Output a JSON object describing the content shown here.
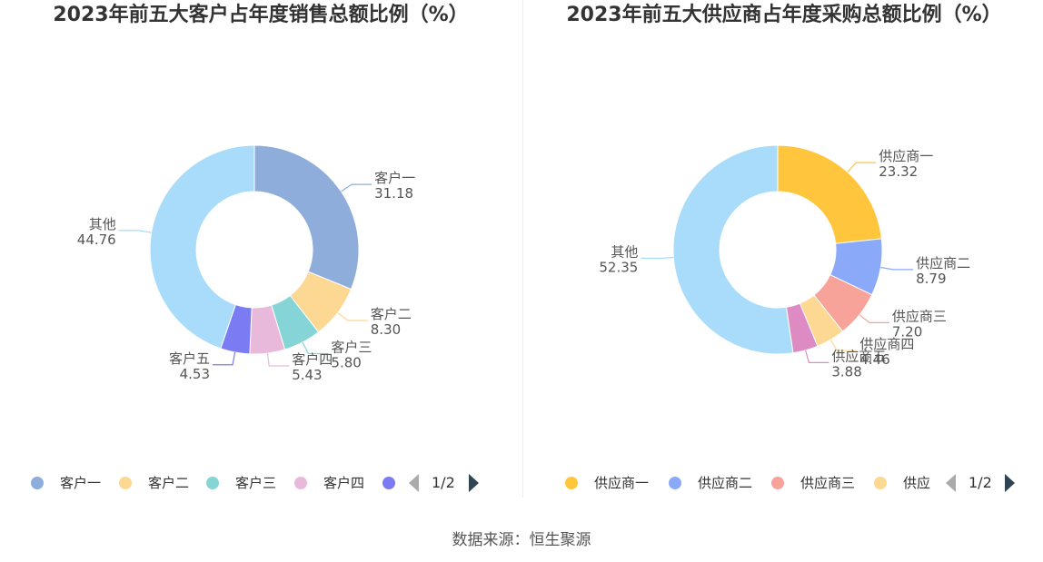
{
  "chart_data": [
    {
      "type": "pie",
      "title": "2023年前五大客户占年度销售总额比例（%）",
      "categories": [
        "客户一",
        "客户二",
        "客户三",
        "客户四",
        "客户五",
        "其他"
      ],
      "values": [
        31.18,
        8.3,
        5.8,
        5.43,
        4.53,
        44.76
      ],
      "value_labels": [
        "31.18",
        "8.30",
        "5.80",
        "5.43",
        "4.53",
        "44.76"
      ],
      "colors": [
        "#8eadda",
        "#fdd892",
        "#86d5d6",
        "#e8b9da",
        "#7b7bf3",
        "#a9dcfa"
      ],
      "legend": {
        "placement": "bottom",
        "visible_items": [
          "客户一",
          "客户二",
          "客户三",
          "客户四",
          ""
        ],
        "page": "1/2"
      }
    },
    {
      "type": "pie",
      "title": "2023年前五大供应商占年度采购总额比例（%）",
      "categories": [
        "供应商一",
        "供应商二",
        "供应商三",
        "供应商四",
        "供应商五",
        "其他"
      ],
      "values": [
        23.32,
        8.79,
        7.2,
        4.46,
        3.88,
        52.35
      ],
      "value_labels": [
        "23.32",
        "8.79",
        "7.20",
        "4.46",
        "3.88",
        "52.35"
      ],
      "colors": [
        "#ffc53d",
        "#8aa9f8",
        "#f7a39a",
        "#fdd892",
        "#de8ac3",
        "#a9dcfa"
      ],
      "legend": {
        "placement": "bottom",
        "visible_items": [
          "供应商一",
          "供应商二",
          "供应商三",
          "供应"
        ],
        "page": "1/2"
      }
    }
  ],
  "source": "数据来源：恒生聚源"
}
